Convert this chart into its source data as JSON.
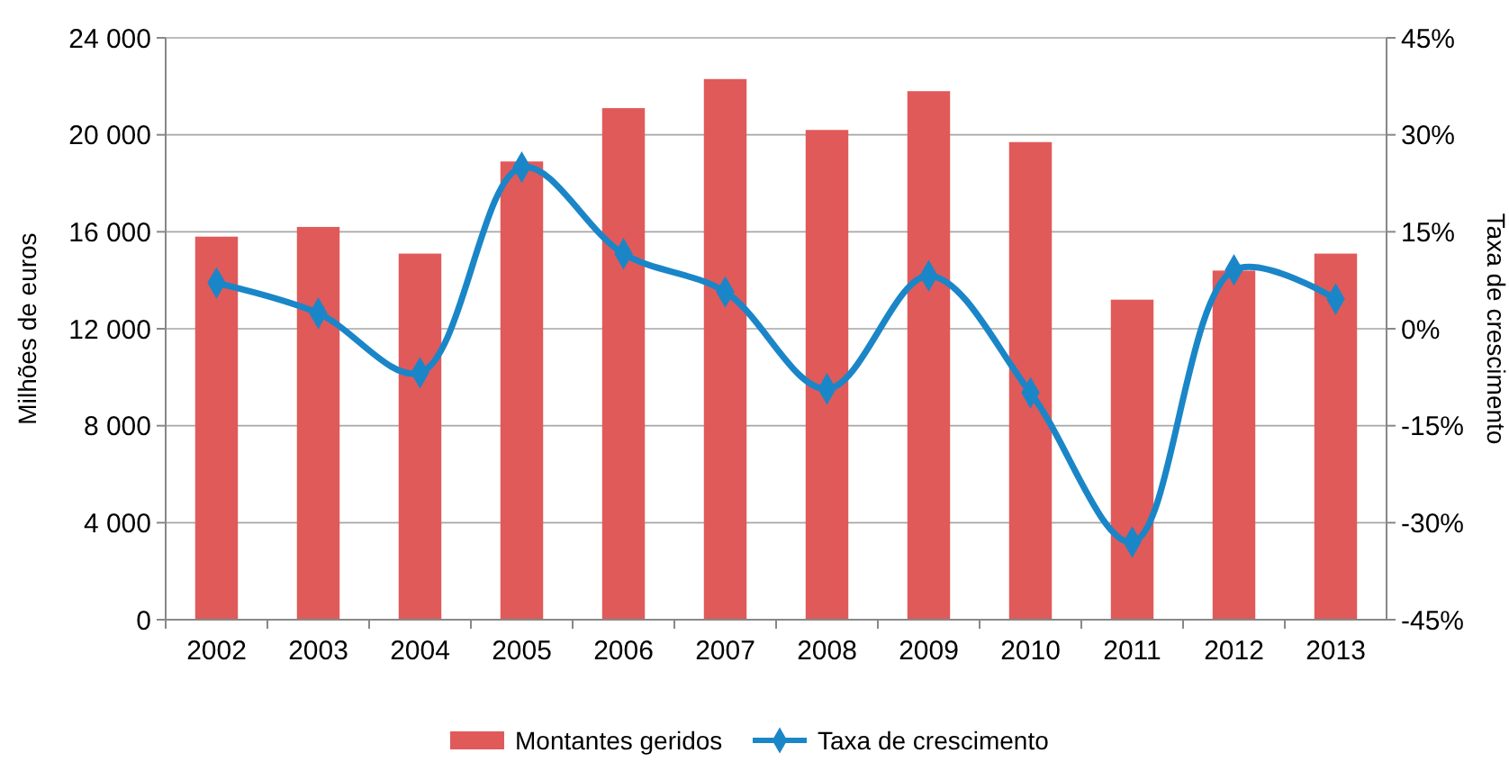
{
  "chart_data": {
    "type": "bar",
    "ylabel": "Milhões de euros",
    "y2label": "Taxa de crescimento",
    "categories": [
      "2002",
      "2003",
      "2004",
      "2005",
      "2006",
      "2007",
      "2008",
      "2009",
      "2010",
      "2011",
      "2012",
      "2013"
    ],
    "series": [
      {
        "name": "Montantes geridos",
        "color": "#e05a5a",
        "values": [
          15800,
          16200,
          15100,
          18900,
          21100,
          22300,
          20200,
          21800,
          19700,
          13200,
          14400,
          15100
        ]
      },
      {
        "name": "Taxa de crescimento",
        "type": "line",
        "axis": "y2",
        "color": "#1a86c8",
        "marker": "diamond",
        "values": [
          7.1,
          2.4,
          -6.8,
          25,
          11.6,
          5.7,
          -9.3,
          8.2,
          -9.9,
          -33,
          9.1,
          4.6
        ]
      }
    ],
    "ylim": [
      0,
      24000
    ],
    "yticks": [
      0,
      {
        "value": 4000,
        "label": "4 000"
      },
      {
        "value": 8000,
        "label": "8 000"
      },
      {
        "value": 12000,
        "label": "12 000"
      },
      {
        "value": 16000,
        "label": "16 000"
      },
      {
        "value": 20000,
        "label": "20 000"
      },
      {
        "value": 24000,
        "label": "24 000"
      }
    ],
    "y2lim": [
      -45,
      45
    ],
    "y2ticks": [
      {
        "value": -45,
        "label": "-45%"
      },
      {
        "value": -30,
        "label": "-30%"
      },
      {
        "value": -15,
        "label": "-15%"
      },
      {
        "value": 0,
        "label": "0%"
      },
      {
        "value": 15,
        "label": "15%"
      },
      {
        "value": 30,
        "label": "30%"
      },
      {
        "value": 45,
        "label": "45%"
      }
    ],
    "grid": "y",
    "legend": "bottom"
  }
}
